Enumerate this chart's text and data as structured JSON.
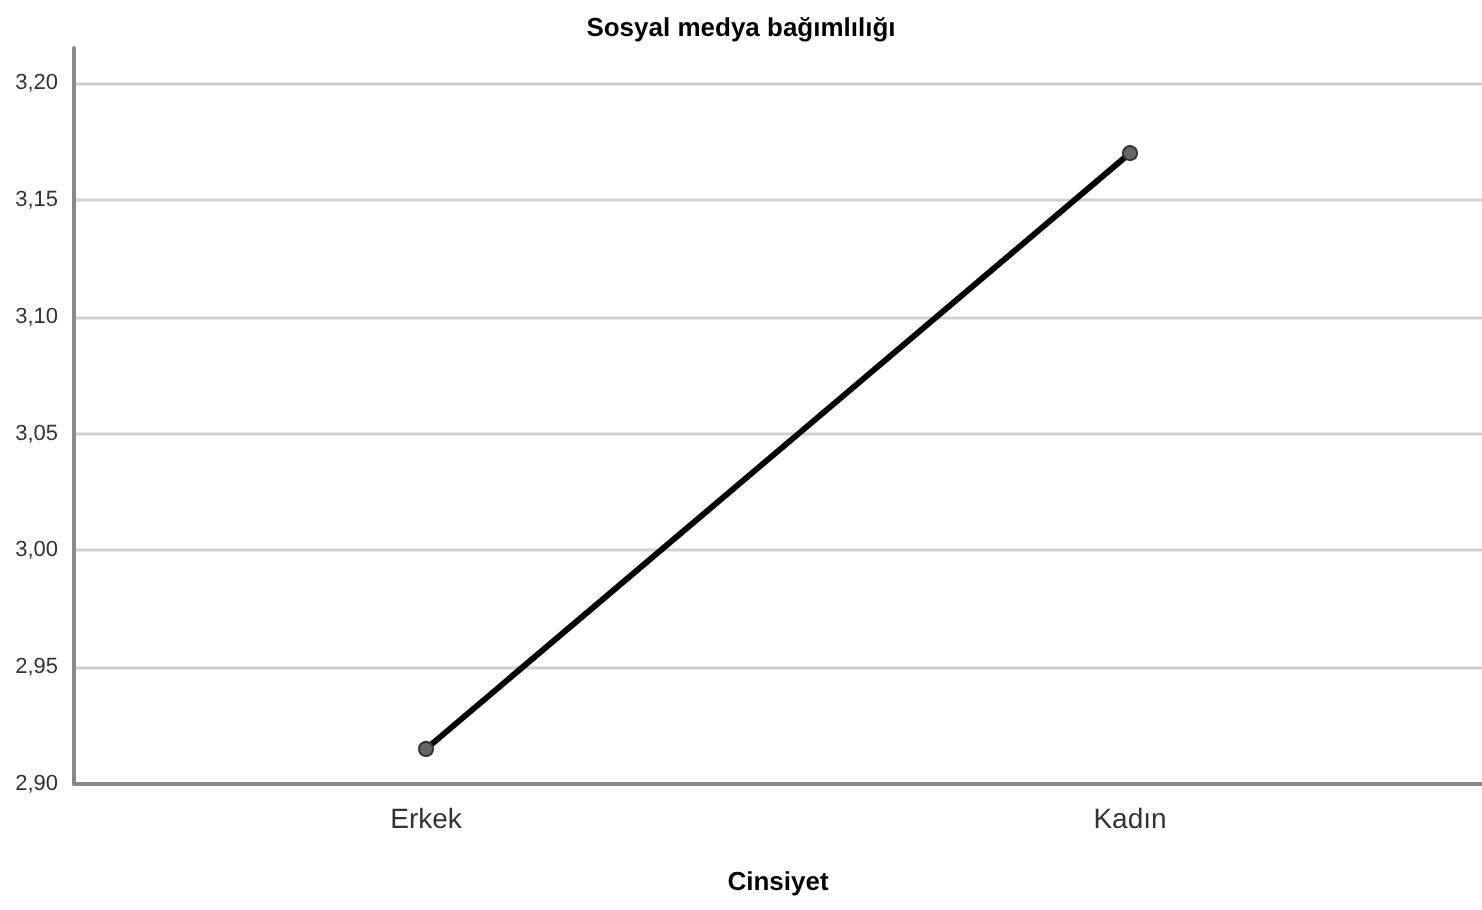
{
  "chart_data": {
    "type": "line",
    "title": "Sosyal medya bağımlılığı",
    "xlabel": "Cinsiyet",
    "categories": [
      "Erkek",
      "Kadın"
    ],
    "series": [
      {
        "color": "#000000",
        "values": [
          2.915,
          3.17
        ]
      }
    ],
    "ylim": [
      2.9,
      3.215
    ],
    "yticks": [
      {
        "value": 2.9,
        "label": "2,90"
      },
      {
        "value": 2.95,
        "label": "2,95"
      },
      {
        "value": 3.0,
        "label": "3,00"
      },
      {
        "value": 3.05,
        "label": "3,05"
      },
      {
        "value": 3.1,
        "label": "3,10"
      },
      {
        "value": 3.15,
        "label": "3,15"
      },
      {
        "value": 3.2,
        "label": "3,20"
      }
    ],
    "grid": "y",
    "marker": "circle",
    "line_style": "solid"
  }
}
